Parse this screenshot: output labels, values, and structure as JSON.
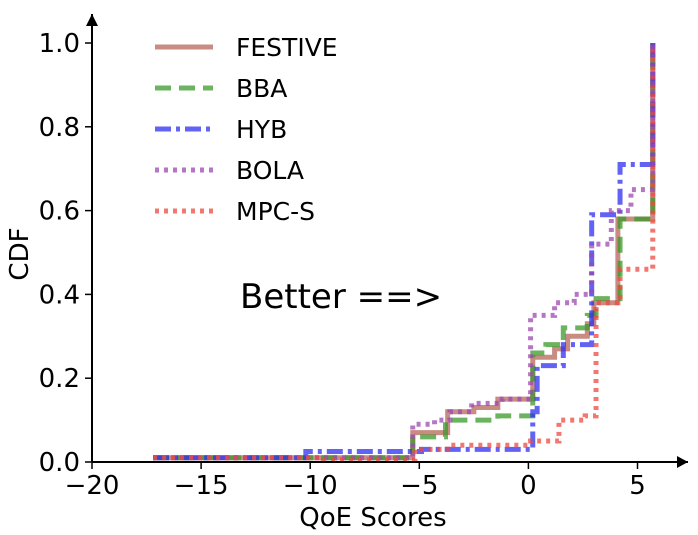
{
  "chart_data": {
    "type": "line",
    "title": "",
    "xlabel": "QoE Scores",
    "ylabel": "CDF",
    "xlim": [
      -20,
      6.5
    ],
    "ylim": [
      0,
      1.05
    ],
    "xticks": [
      -20,
      -15,
      -10,
      -5,
      0,
      5
    ],
    "xtick_labels": [
      "−20",
      "−15",
      "−10",
      "−5",
      "0",
      "5"
    ],
    "yticks": [
      0.0,
      0.2,
      0.4,
      0.6,
      0.8,
      1.0
    ],
    "ytick_labels": [
      "0.0",
      "0.2",
      "0.4",
      "0.6",
      "0.8",
      "1.0"
    ],
    "grid": false,
    "legend_position": "top-left",
    "annotation": "Better ==>",
    "series": [
      {
        "name": "FESTIVE",
        "color": "#b5655a",
        "style": "solid",
        "steps": [
          [
            -17.2,
            0.01
          ],
          [
            -5.3,
            0.07
          ],
          [
            -3.7,
            0.12
          ],
          [
            -2.5,
            0.13
          ],
          [
            -1.4,
            0.15
          ],
          [
            0.2,
            0.25
          ],
          [
            1.2,
            0.27
          ],
          [
            1.8,
            0.3
          ],
          [
            2.7,
            0.33
          ],
          [
            3.0,
            0.38
          ],
          [
            4.1,
            0.58
          ],
          [
            5.7,
            1.0
          ]
        ]
      },
      {
        "name": "BBA",
        "color": "#3a9a28",
        "style": "dashed",
        "steps": [
          [
            -17.2,
            0.01
          ],
          [
            -5.3,
            0.06
          ],
          [
            -3.8,
            0.1
          ],
          [
            -1.4,
            0.11
          ],
          [
            0.2,
            0.26
          ],
          [
            0.8,
            0.28
          ],
          [
            1.6,
            0.32
          ],
          [
            2.7,
            0.35
          ],
          [
            3.1,
            0.39
          ],
          [
            4.2,
            0.58
          ],
          [
            5.7,
            1.0
          ]
        ]
      },
      {
        "name": "HYB",
        "color": "#2e2ef0",
        "style": "dashdot",
        "steps": [
          [
            -17.2,
            0.01
          ],
          [
            -10.2,
            0.025
          ],
          [
            -4.9,
            0.03
          ],
          [
            -1.4,
            0.03
          ],
          [
            0.2,
            0.12
          ],
          [
            0.4,
            0.23
          ],
          [
            1.6,
            0.28
          ],
          [
            2.9,
            0.59
          ],
          [
            4.2,
            0.71
          ],
          [
            5.7,
            1.0
          ]
        ]
      },
      {
        "name": "BOLA",
        "color": "#9c48b0",
        "style": "dotted",
        "steps": [
          [
            -17.2,
            0.01
          ],
          [
            -5.3,
            0.09
          ],
          [
            -4.3,
            0.1
          ],
          [
            -3.6,
            0.12
          ],
          [
            -2.6,
            0.14
          ],
          [
            -1.2,
            0.15
          ],
          [
            0.1,
            0.35
          ],
          [
            1.2,
            0.38
          ],
          [
            2.1,
            0.4
          ],
          [
            2.9,
            0.52
          ],
          [
            3.8,
            0.6
          ],
          [
            4.7,
            0.65
          ],
          [
            5.7,
            1.0
          ]
        ]
      },
      {
        "name": "MPC-S",
        "color": "#ee4a40",
        "style": "dotted",
        "steps": [
          [
            -17.2,
            0.01
          ],
          [
            -9.4,
            0.005
          ],
          [
            -5.2,
            0.03
          ],
          [
            -3.7,
            0.04
          ],
          [
            0.1,
            0.05
          ],
          [
            1.4,
            0.1
          ],
          [
            2.6,
            0.11
          ],
          [
            3.1,
            0.38
          ],
          [
            4.2,
            0.46
          ],
          [
            5.7,
            1.0
          ]
        ]
      }
    ]
  }
}
